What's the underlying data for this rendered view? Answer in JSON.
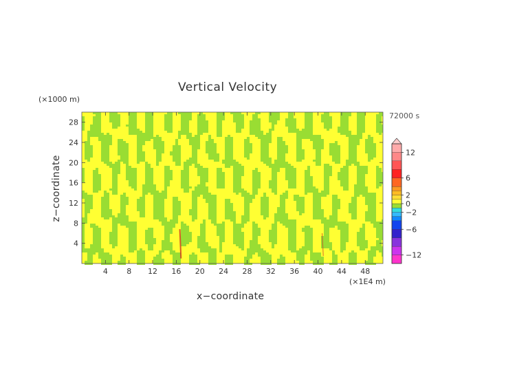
{
  "chart_data": {
    "type": "heatmap",
    "title": "Vertical Velocity",
    "xlabel": "x−coordinate",
    "ylabel": "z−coordinate",
    "x_unit": "(×1E4 m)",
    "y_unit": "(×1000 m)",
    "time_label": "72000 s",
    "xlim": [
      0,
      51
    ],
    "ylim": [
      0,
      30
    ],
    "x_ticks": [
      4,
      8,
      12,
      16,
      20,
      24,
      28,
      32,
      36,
      40,
      44,
      48
    ],
    "y_ticks": [
      4,
      8,
      12,
      16,
      20,
      24,
      28
    ],
    "colorbar": {
      "range": [
        -14,
        14
      ],
      "tick_values": [
        12,
        6,
        2,
        0,
        -2,
        -6,
        -12
      ],
      "tick_labels": [
        "12",
        "6",
        "2",
        "0",
        "−2",
        "−6",
        "−12"
      ],
      "bands": [
        {
          "from": -14,
          "to": -12,
          "color": "#ff33cc"
        },
        {
          "from": -12,
          "to": -10,
          "color": "#cc33ee"
        },
        {
          "from": -10,
          "to": -8,
          "color": "#8833dd"
        },
        {
          "from": -8,
          "to": -6,
          "color": "#3322cc"
        },
        {
          "from": -6,
          "to": -4,
          "color": "#1144ee"
        },
        {
          "from": -4,
          "to": -3,
          "color": "#1188ff"
        },
        {
          "from": -3,
          "to": -2,
          "color": "#33bbff"
        },
        {
          "from": -2,
          "to": -1,
          "color": "#33dddd"
        },
        {
          "from": -1,
          "to": 0,
          "color": "#99dd33"
        },
        {
          "from": 0,
          "to": 1,
          "color": "#ffff33"
        },
        {
          "from": 1,
          "to": 2,
          "color": "#ffdd33"
        },
        {
          "from": 2,
          "to": 3,
          "color": "#ffbb22"
        },
        {
          "from": 3,
          "to": 4,
          "color": "#ff9922"
        },
        {
          "from": 4,
          "to": 6,
          "color": "#ff6622"
        },
        {
          "from": 6,
          "to": 8,
          "color": "#ff2222"
        },
        {
          "from": 8,
          "to": 10,
          "color": "#ff5555"
        },
        {
          "from": 10,
          "to": 12,
          "color": "#ff8888"
        },
        {
          "from": 12,
          "to": 14,
          "color": "#ffaaaa"
        }
      ]
    },
    "field_colors": {
      "positive": "#ffff33",
      "negative": "#99dd33",
      "strong_positive": "#cc3322",
      "strong_negative": "#33bbff"
    }
  }
}
